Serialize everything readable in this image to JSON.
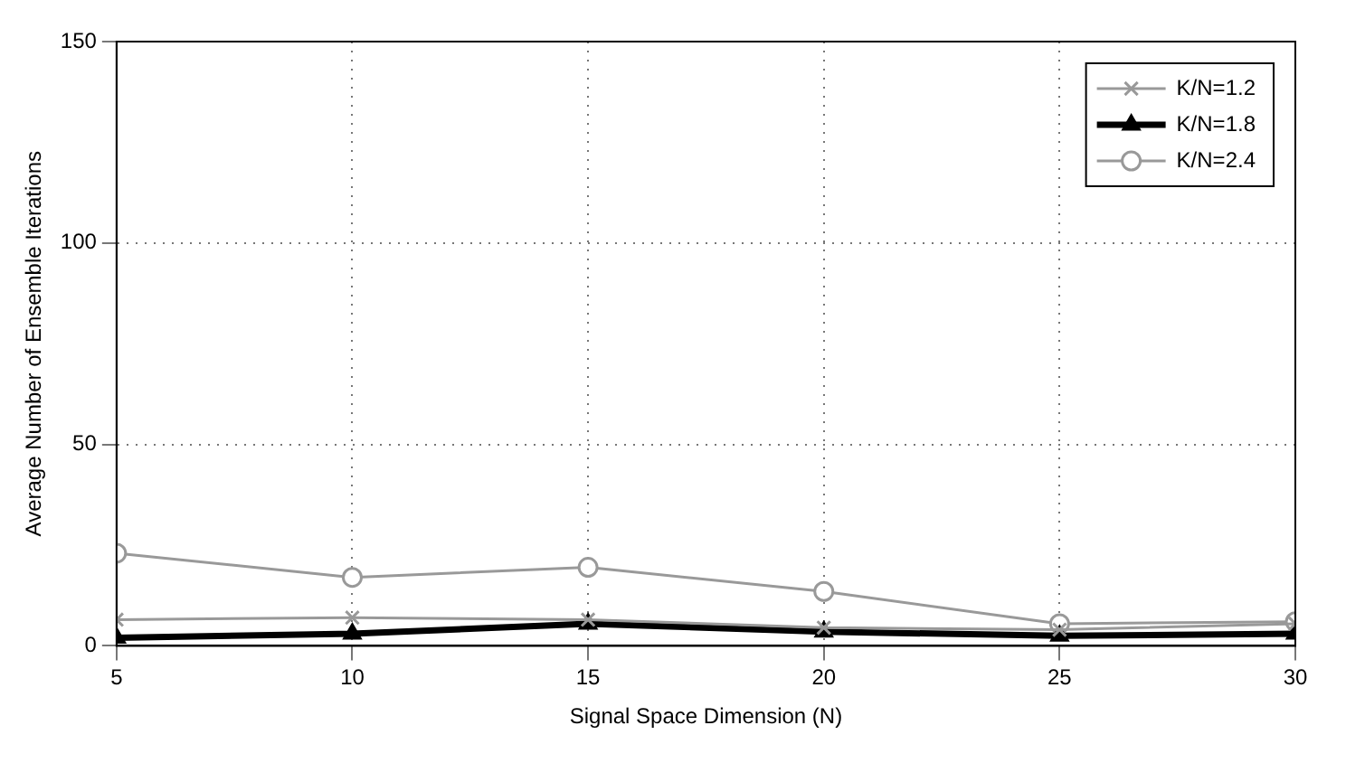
{
  "chart_data": {
    "type": "line",
    "xlabel": "Signal Space Dimension (N)",
    "ylabel": "Average Number of Ensemble Iterations",
    "x": [
      5,
      10,
      15,
      20,
      25,
      30
    ],
    "xlim": [
      5,
      30
    ],
    "xticks": [
      5,
      10,
      15,
      20,
      25,
      30
    ],
    "ylim": [
      0,
      150
    ],
    "yticks": [
      0,
      50,
      100,
      150
    ],
    "grid": true,
    "legend": "top right",
    "line_style": "solid",
    "series": [
      {
        "name": "K/N=1.2",
        "color": "#999999",
        "marker": "cross",
        "values": [
          6.5,
          7,
          6.5,
          4.5,
          4,
          5.5
        ]
      },
      {
        "name": "K/N=1.8",
        "color": "#000000",
        "marker": "triangle",
        "values": [
          2,
          3,
          5.5,
          3.5,
          2.5,
          3
        ]
      },
      {
        "name": "K/N=2.4",
        "color": "#999999",
        "marker": "circle",
        "values": [
          23,
          17,
          19.5,
          13.5,
          5.5,
          6
        ]
      }
    ]
  }
}
